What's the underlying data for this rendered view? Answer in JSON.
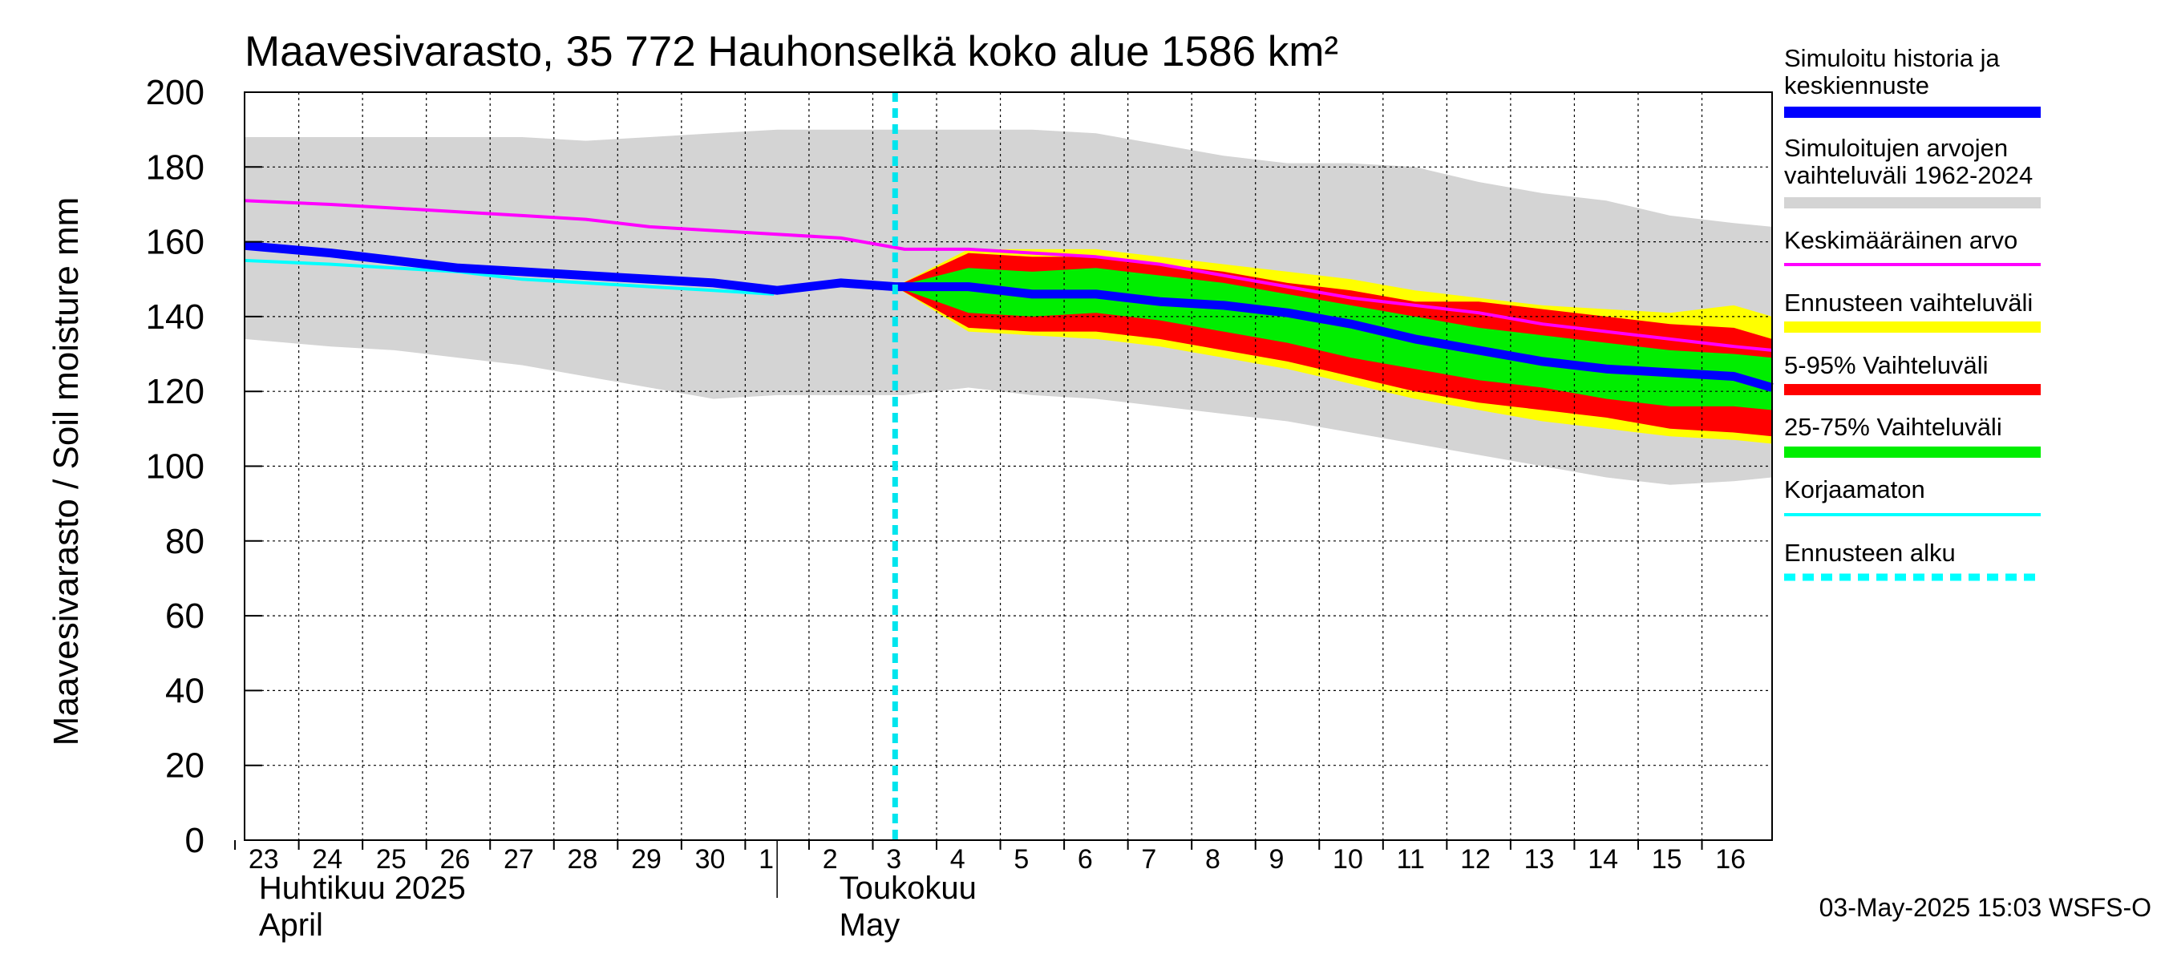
{
  "chart_data": {
    "type": "area",
    "title": "Maavesivarasto, 35 772 Hauhonselkä koko alue 1586 km²",
    "ylabel": "Maavesivarasto / Soil moisture   mm",
    "ylim": [
      0,
      200
    ],
    "yticks": [
      0,
      20,
      40,
      60,
      80,
      100,
      120,
      140,
      160,
      180,
      200
    ],
    "x_days": [
      "23",
      "24",
      "25",
      "26",
      "27",
      "28",
      "29",
      "30",
      "1",
      "2",
      "3",
      "4",
      "5",
      "6",
      "7",
      "8",
      "9",
      "10",
      "11",
      "12",
      "13",
      "14",
      "15",
      "16"
    ],
    "x_range": [
      -0.35,
      23.6
    ],
    "month_labels": [
      {
        "x": 0,
        "lines": [
          "Huhtikuu  2025",
          "April"
        ]
      },
      {
        "x": 9.1,
        "lines": [
          "Toukokuu",
          "May"
        ]
      }
    ],
    "month_divider_x": 8.0,
    "forecast_start_x": 9.85,
    "series": [
      {
        "name": "Simuloitujen arvojen vaihteluväli 1962-2024",
        "kind": "band",
        "color": "#d4d4d4",
        "x": [
          -0.35,
          1,
          2,
          3,
          4,
          5,
          6,
          7,
          8,
          9,
          10,
          11,
          12,
          13,
          14,
          15,
          16,
          17,
          18,
          19,
          20,
          21,
          22,
          23,
          23.6
        ],
        "lower": [
          134,
          132,
          131,
          129,
          127,
          124,
          121,
          118,
          119,
          119,
          119,
          121,
          119,
          118,
          116,
          114,
          112,
          109,
          106,
          103,
          100,
          97,
          95,
          96,
          97
        ],
        "upper": [
          188,
          188,
          188,
          188,
          188,
          187,
          188,
          189,
          190,
          190,
          190,
          190,
          190,
          189,
          186,
          183,
          181,
          181,
          180,
          176,
          173,
          171,
          167,
          165,
          164
        ]
      },
      {
        "name": "Ennusteen vaihteluväli",
        "kind": "band",
        "color": "#ffff00",
        "x": [
          9.85,
          11,
          12,
          13,
          14,
          15,
          16,
          17,
          18,
          19,
          20,
          21,
          22,
          23,
          23.6
        ],
        "lower": [
          148,
          136,
          135,
          134,
          132,
          129,
          126,
          122,
          118,
          115,
          112,
          110,
          108,
          107,
          106
        ],
        "upper": [
          148,
          158,
          158,
          158,
          156,
          154,
          152,
          150,
          147,
          145,
          143,
          142,
          141,
          143,
          140
        ]
      },
      {
        "name": "5-95% Vaihteluväli",
        "kind": "band",
        "color": "#ff0000",
        "x": [
          9.85,
          11,
          12,
          13,
          14,
          15,
          16,
          17,
          18,
          19,
          20,
          21,
          22,
          23,
          23.6
        ],
        "lower": [
          148,
          137,
          136,
          136,
          134,
          131,
          128,
          124,
          120,
          117,
          115,
          113,
          110,
          109,
          108
        ],
        "upper": [
          148,
          157,
          156,
          156,
          154,
          152,
          149,
          147,
          144,
          144,
          142,
          140,
          138,
          137,
          134
        ]
      },
      {
        "name": "25-75% Vaihteluväli",
        "kind": "band",
        "color": "#00ee00",
        "x": [
          9.85,
          11,
          12,
          13,
          14,
          15,
          16,
          17,
          18,
          19,
          20,
          21,
          22,
          23,
          23.6
        ],
        "lower": [
          148,
          141,
          140,
          141,
          139,
          136,
          133,
          129,
          126,
          123,
          121,
          118,
          116,
          116,
          115
        ],
        "upper": [
          148,
          153,
          152,
          153,
          151,
          149,
          146,
          143,
          140,
          137,
          135,
          133,
          131,
          130,
          129
        ]
      },
      {
        "name": "Keskimääräinen arvo",
        "kind": "line",
        "color": "#ff00ff",
        "width": 4,
        "x": [
          -0.35,
          1,
          2,
          3,
          4,
          5,
          6,
          7,
          8,
          9,
          10,
          11,
          12,
          13,
          14,
          15,
          16,
          17,
          18,
          19,
          20,
          21,
          22,
          23,
          23.6
        ],
        "y": [
          171,
          170,
          169,
          168,
          167,
          166,
          164,
          163,
          162,
          161,
          158,
          158,
          157,
          156,
          154,
          151,
          148,
          145,
          143,
          141,
          138,
          136,
          134,
          132,
          131
        ]
      },
      {
        "name": "Korjaamaton",
        "kind": "line",
        "color": "#00ffff",
        "width": 4,
        "x": [
          -0.35,
          1,
          2,
          3,
          4,
          5,
          6,
          7,
          7.95
        ],
        "y": [
          155,
          154,
          153,
          152,
          150,
          149,
          148,
          147,
          146
        ]
      },
      {
        "name": "Simuloitu historia ja keskiennuste",
        "kind": "line",
        "color": "#0000ff",
        "width": 11,
        "x": [
          -0.35,
          1,
          2,
          3,
          4,
          5,
          6,
          7,
          8,
          9,
          9.85,
          11,
          12,
          13,
          14,
          15,
          16,
          17,
          18,
          19,
          20,
          21,
          22,
          23,
          23.6
        ],
        "y": [
          159,
          157,
          155,
          153,
          152,
          151,
          150,
          149,
          147,
          149,
          148,
          148,
          146,
          146,
          144,
          143,
          141,
          138,
          134,
          131,
          128,
          126,
          125,
          124,
          121
        ]
      }
    ]
  },
  "legend": [
    {
      "lines": [
        "Simuloitu historia ja",
        "keskiennuste"
      ],
      "color": "#0000ff",
      "style": "thick"
    },
    {
      "lines": [
        "Simuloitujen arvojen",
        "vaihteluväli 1962-2024"
      ],
      "color": "#d4d4d4",
      "style": "thick"
    },
    {
      "lines": [
        "Keskimääräinen arvo"
      ],
      "color": "#ff00ff",
      "style": "thin"
    },
    {
      "lines": [
        "Ennusteen vaihteluväli"
      ],
      "color": "#ffff00",
      "style": "thick"
    },
    {
      "lines": [
        "5-95% Vaihteluväli"
      ],
      "color": "#ff0000",
      "style": "thick"
    },
    {
      "lines": [
        "25-75% Vaihteluväli"
      ],
      "color": "#00ee00",
      "style": "thick"
    },
    {
      "lines": [
        "Korjaamaton"
      ],
      "color": "#00ffff",
      "style": "thin"
    },
    {
      "lines": [
        "Ennusteen alku"
      ],
      "color": "#00ffff",
      "style": "dashed"
    }
  ],
  "timestamp": "03-May-2025 15:03 WSFS-O"
}
